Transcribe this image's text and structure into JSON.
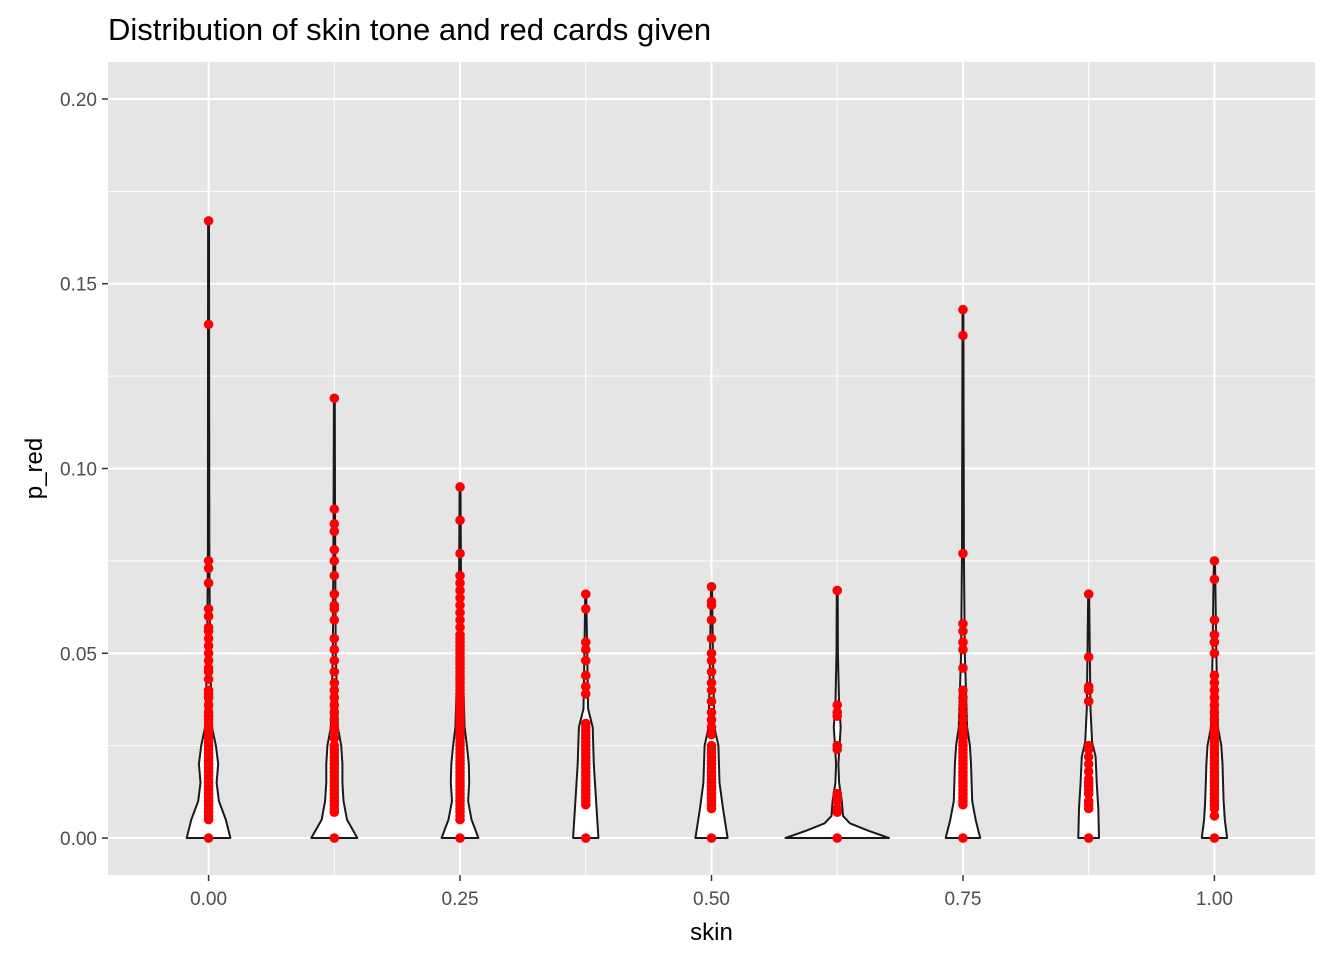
{
  "chart_data": {
    "type": "violin",
    "title": "Distribution of skin tone and red cards given",
    "xlabel": "skin",
    "ylabel": "p_red",
    "xlim": [
      -0.1,
      1.1
    ],
    "ylim": [
      -0.01,
      0.21
    ],
    "x_ticks": [
      {
        "value": 0.0,
        "label": "0.00"
      },
      {
        "value": 0.25,
        "label": "0.25"
      },
      {
        "value": 0.5,
        "label": "0.50"
      },
      {
        "value": 0.75,
        "label": "0.75"
      },
      {
        "value": 1.0,
        "label": "1.00"
      }
    ],
    "y_ticks": [
      {
        "value": 0.0,
        "label": "0.00"
      },
      {
        "value": 0.05,
        "label": "0.05"
      },
      {
        "value": 0.1,
        "label": "0.10"
      },
      {
        "value": 0.15,
        "label": "0.15"
      },
      {
        "value": 0.2,
        "label": "0.20"
      }
    ],
    "grid": true,
    "colors": {
      "panel_background": "#e5e5e5",
      "grid_major": "#ffffff",
      "violin_outline": "#1a1a1a",
      "violin_fill": "#ffffff",
      "points": "#ff0000"
    },
    "groups": [
      {
        "skin": 0.0,
        "violin": [
          [
            0,
            0.95
          ],
          [
            0.005,
            0.75
          ],
          [
            0.01,
            0.45
          ],
          [
            0.015,
            0.35
          ],
          [
            0.02,
            0.42
          ],
          [
            0.025,
            0.32
          ],
          [
            0.03,
            0.15
          ],
          [
            0.05,
            0.06
          ],
          [
            0.08,
            0.03
          ],
          [
            0.167,
            0.02
          ]
        ],
        "points": [
          0,
          0.005,
          0.006,
          0.007,
          0.008,
          0.009,
          0.01,
          0.011,
          0.012,
          0.013,
          0.014,
          0.015,
          0.016,
          0.017,
          0.018,
          0.019,
          0.02,
          0.021,
          0.022,
          0.023,
          0.024,
          0.025,
          0.026,
          0.027,
          0.028,
          0.029,
          0.03,
          0.031,
          0.032,
          0.033,
          0.034,
          0.036,
          0.038,
          0.039,
          0.04,
          0.043,
          0.045,
          0.046,
          0.048,
          0.05,
          0.052,
          0.054,
          0.056,
          0.057,
          0.06,
          0.062,
          0.069,
          0.073,
          0.075,
          0.139,
          0.167
        ]
      },
      {
        "skin": 0.125,
        "violin": [
          [
            0,
            1.0
          ],
          [
            0.005,
            0.55
          ],
          [
            0.01,
            0.4
          ],
          [
            0.015,
            0.35
          ],
          [
            0.02,
            0.35
          ],
          [
            0.025,
            0.3
          ],
          [
            0.03,
            0.15
          ],
          [
            0.05,
            0.06
          ],
          [
            0.09,
            0.03
          ],
          [
            0.119,
            0.02
          ]
        ],
        "points": [
          0,
          0.007,
          0.008,
          0.009,
          0.01,
          0.011,
          0.012,
          0.013,
          0.014,
          0.015,
          0.016,
          0.017,
          0.018,
          0.019,
          0.02,
          0.021,
          0.022,
          0.023,
          0.024,
          0.025,
          0.027,
          0.029,
          0.03,
          0.032,
          0.034,
          0.036,
          0.038,
          0.04,
          0.042,
          0.045,
          0.048,
          0.051,
          0.054,
          0.059,
          0.062,
          0.063,
          0.066,
          0.071,
          0.075,
          0.078,
          0.083,
          0.085,
          0.089,
          0.119
        ]
      },
      {
        "skin": 0.25,
        "violin": [
          [
            0,
            0.8
          ],
          [
            0.005,
            0.5
          ],
          [
            0.01,
            0.35
          ],
          [
            0.015,
            0.4
          ],
          [
            0.02,
            0.38
          ],
          [
            0.025,
            0.3
          ],
          [
            0.03,
            0.2
          ],
          [
            0.05,
            0.1
          ],
          [
            0.07,
            0.04
          ],
          [
            0.095,
            0.02
          ]
        ],
        "points": [
          0,
          0.005,
          0.006,
          0.007,
          0.008,
          0.009,
          0.01,
          0.011,
          0.012,
          0.013,
          0.014,
          0.015,
          0.016,
          0.017,
          0.018,
          0.019,
          0.02,
          0.021,
          0.022,
          0.023,
          0.024,
          0.025,
          0.026,
          0.027,
          0.028,
          0.029,
          0.03,
          0.031,
          0.032,
          0.033,
          0.034,
          0.035,
          0.036,
          0.037,
          0.038,
          0.039,
          0.04,
          0.041,
          0.042,
          0.043,
          0.044,
          0.045,
          0.046,
          0.047,
          0.048,
          0.049,
          0.05,
          0.051,
          0.052,
          0.053,
          0.054,
          0.055,
          0.057,
          0.059,
          0.061,
          0.063,
          0.065,
          0.067,
          0.069,
          0.071,
          0.077,
          0.086,
          0.095
        ]
      },
      {
        "skin": 0.375,
        "violin": [
          [
            0,
            0.55
          ],
          [
            0.01,
            0.45
          ],
          [
            0.02,
            0.35
          ],
          [
            0.03,
            0.3
          ],
          [
            0.035,
            0.1
          ],
          [
            0.05,
            0.06
          ],
          [
            0.067,
            0.02
          ]
        ],
        "points": [
          0,
          0.009,
          0.01,
          0.011,
          0.012,
          0.013,
          0.014,
          0.015,
          0.016,
          0.017,
          0.018,
          0.019,
          0.02,
          0.021,
          0.022,
          0.023,
          0.024,
          0.025,
          0.026,
          0.027,
          0.028,
          0.029,
          0.03,
          0.031,
          0.039,
          0.041,
          0.044,
          0.048,
          0.051,
          0.053,
          0.062,
          0.066
        ]
      },
      {
        "skin": 0.5,
        "violin": [
          [
            0,
            0.7
          ],
          [
            0.008,
            0.5
          ],
          [
            0.015,
            0.35
          ],
          [
            0.025,
            0.3
          ],
          [
            0.03,
            0.12
          ],
          [
            0.05,
            0.06
          ],
          [
            0.068,
            0.02
          ]
        ],
        "points": [
          0,
          0.008,
          0.009,
          0.01,
          0.011,
          0.012,
          0.013,
          0.014,
          0.015,
          0.016,
          0.017,
          0.018,
          0.019,
          0.02,
          0.021,
          0.022,
          0.023,
          0.024,
          0.025,
          0.028,
          0.03,
          0.032,
          0.034,
          0.037,
          0.04,
          0.042,
          0.045,
          0.048,
          0.05,
          0.054,
          0.059,
          0.063,
          0.064,
          0.068
        ]
      },
      {
        "skin": 0.625,
        "violin": [
          [
            0,
            2.25
          ],
          [
            0.002,
            1.35
          ],
          [
            0.004,
            0.55
          ],
          [
            0.006,
            0.25
          ],
          [
            0.01,
            0.2
          ],
          [
            0.015,
            0.08
          ],
          [
            0.02,
            0.05
          ],
          [
            0.027,
            0.12
          ],
          [
            0.03,
            0.15
          ],
          [
            0.036,
            0.08
          ],
          [
            0.05,
            0.03
          ],
          [
            0.067,
            0.02
          ]
        ],
        "points": [
          0,
          0.007,
          0.008,
          0.01,
          0.011,
          0.012,
          0.024,
          0.025,
          0.033,
          0.034,
          0.036,
          0.067
        ]
      },
      {
        "skin": 0.75,
        "violin": [
          [
            0,
            0.75
          ],
          [
            0.005,
            0.55
          ],
          [
            0.01,
            0.4
          ],
          [
            0.02,
            0.35
          ],
          [
            0.025,
            0.3
          ],
          [
            0.03,
            0.18
          ],
          [
            0.05,
            0.08
          ],
          [
            0.077,
            0.04
          ],
          [
            0.14,
            0.02
          ],
          [
            0.143,
            0.02
          ]
        ],
        "points": [
          0,
          0.009,
          0.01,
          0.011,
          0.012,
          0.013,
          0.014,
          0.015,
          0.016,
          0.017,
          0.018,
          0.019,
          0.02,
          0.021,
          0.022,
          0.023,
          0.024,
          0.025,
          0.026,
          0.027,
          0.028,
          0.029,
          0.03,
          0.032,
          0.034,
          0.036,
          0.038,
          0.04,
          0.046,
          0.051,
          0.053,
          0.056,
          0.058,
          0.077,
          0.136,
          0.143
        ]
      },
      {
        "skin": 0.875,
        "violin": [
          [
            0,
            0.45
          ],
          [
            0.008,
            0.42
          ],
          [
            0.015,
            0.35
          ],
          [
            0.022,
            0.3
          ],
          [
            0.026,
            0.15
          ],
          [
            0.035,
            0.08
          ],
          [
            0.05,
            0.05
          ],
          [
            0.067,
            0.02
          ]
        ],
        "points": [
          0,
          0.008,
          0.009,
          0.01,
          0.012,
          0.013,
          0.014,
          0.015,
          0.016,
          0.018,
          0.02,
          0.022,
          0.024,
          0.025,
          0.037,
          0.04,
          0.041,
          0.049,
          0.066
        ]
      },
      {
        "skin": 1.0,
        "violin": [
          [
            0,
            0.55
          ],
          [
            0.005,
            0.45
          ],
          [
            0.01,
            0.4
          ],
          [
            0.02,
            0.35
          ],
          [
            0.025,
            0.3
          ],
          [
            0.03,
            0.15
          ],
          [
            0.05,
            0.08
          ],
          [
            0.07,
            0.04
          ],
          [
            0.075,
            0.02
          ]
        ],
        "points": [
          0,
          0.006,
          0.008,
          0.009,
          0.01,
          0.011,
          0.012,
          0.013,
          0.014,
          0.015,
          0.016,
          0.017,
          0.018,
          0.019,
          0.02,
          0.021,
          0.022,
          0.023,
          0.024,
          0.025,
          0.026,
          0.027,
          0.028,
          0.029,
          0.03,
          0.032,
          0.034,
          0.036,
          0.038,
          0.04,
          0.042,
          0.044,
          0.05,
          0.053,
          0.055,
          0.059,
          0.07,
          0.075
        ]
      }
    ]
  }
}
